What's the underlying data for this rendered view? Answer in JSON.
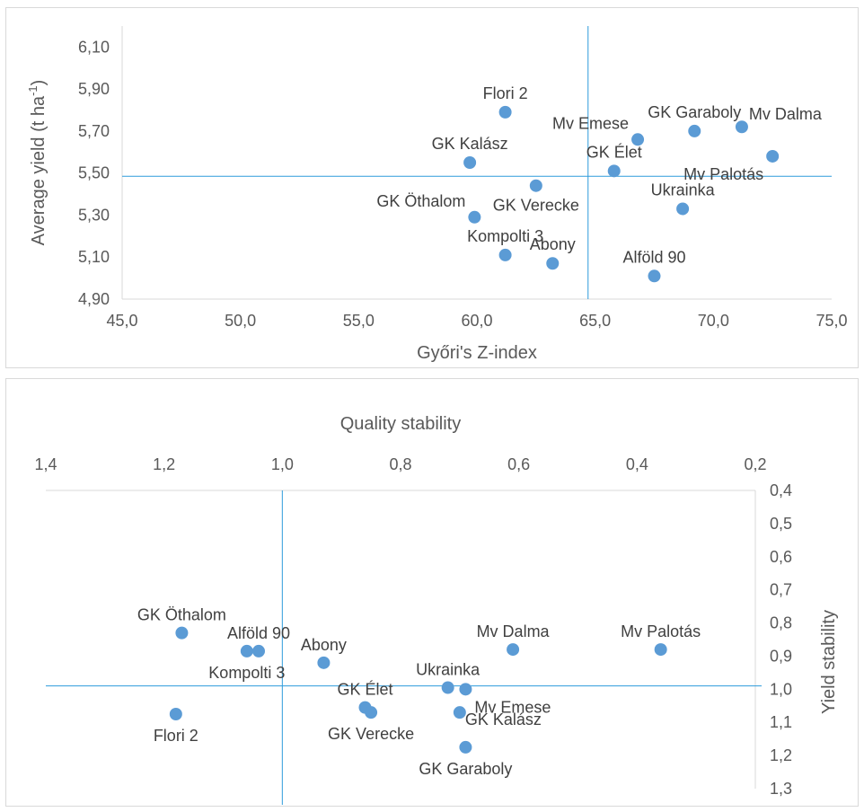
{
  "chart_data": [
    {
      "type": "scatter",
      "xlabel": "Győri's Z-index",
      "ylabel": "Average yield (t ha-1)",
      "ylabel_parts": [
        "Average yield (t ha",
        "-1",
        ")"
      ],
      "xlim": [
        45,
        75
      ],
      "ylim": [
        4.9,
        6.2
      ],
      "x_ticks": [
        "45,0",
        "50,0",
        "55,0",
        "60,0",
        "65,0",
        "70,0",
        "75,0"
      ],
      "x_tick_values": [
        45,
        50,
        55,
        60,
        65,
        70,
        75
      ],
      "y_ticks": [
        "4,90",
        "5,10",
        "5,30",
        "5,50",
        "5,70",
        "5,90",
        "6,10"
      ],
      "y_tick_values": [
        4.9,
        5.1,
        5.3,
        5.5,
        5.7,
        5.9,
        6.1
      ],
      "reference_lines": {
        "x": 64.7,
        "y": 5.485
      },
      "grid": false,
      "marker_color": "#5b9bd5",
      "line_color": "#2e9bdb",
      "points": [
        {
          "name": "Flori 2",
          "x": 61.2,
          "y": 5.79,
          "label_pos": "above"
        },
        {
          "name": "GK Garaboly",
          "x": 69.2,
          "y": 5.7,
          "label_pos": "above"
        },
        {
          "name": "Mv Dalma",
          "x": 71.2,
          "y": 5.72,
          "label_pos": "right"
        },
        {
          "name": "Mv Emese",
          "x": 66.8,
          "y": 5.66,
          "label_pos": "above-left"
        },
        {
          "name": "Mv Palotás",
          "x": 72.5,
          "y": 5.58,
          "label_pos": "below-left"
        },
        {
          "name": "GK Kalász",
          "x": 59.7,
          "y": 5.55,
          "label_pos": "above"
        },
        {
          "name": "GK Élet",
          "x": 65.8,
          "y": 5.51,
          "label_pos": "above"
        },
        {
          "name": "GK Verecke",
          "x": 62.5,
          "y": 5.44,
          "label_pos": "below"
        },
        {
          "name": "Ukrainka",
          "x": 68.7,
          "y": 5.33,
          "label_pos": "above"
        },
        {
          "name": "GK Öthalom",
          "x": 59.9,
          "y": 5.29,
          "label_pos": "above-left"
        },
        {
          "name": "Kompolti 3",
          "x": 61.2,
          "y": 5.11,
          "label_pos": "above"
        },
        {
          "name": "Abony",
          "x": 63.2,
          "y": 5.07,
          "label_pos": "above"
        },
        {
          "name": "Alföld 90",
          "x": 67.5,
          "y": 5.01,
          "label_pos": "above"
        }
      ]
    },
    {
      "type": "scatter",
      "xlabel": "Quality stability",
      "ylabel": "Yield stability",
      "xlim": [
        1.4,
        0.2
      ],
      "ylim": [
        0.4,
        1.3
      ],
      "x_reversed": true,
      "y_reversed": true,
      "x_ticks": [
        "1,4",
        "1,2",
        "1,0",
        "0,8",
        "0,6",
        "0,4",
        "0,2"
      ],
      "x_tick_values": [
        1.4,
        1.2,
        1.0,
        0.8,
        0.6,
        0.4,
        0.2
      ],
      "y_ticks": [
        "0,4",
        "0,5",
        "0,6",
        "0,7",
        "0,8",
        "0,9",
        "1,0",
        "1,1",
        "1,2",
        "1,3"
      ],
      "y_tick_values": [
        0.4,
        0.5,
        0.6,
        0.7,
        0.8,
        0.9,
        1.0,
        1.1,
        1.2,
        1.3
      ],
      "reference_lines": {
        "x": 1.0,
        "y": 0.99
      },
      "grid": false,
      "marker_color": "#5b9bd5",
      "line_color": "#2e9bdb",
      "points": [
        {
          "name": "GK Öthalom",
          "x": 1.17,
          "y": 0.83,
          "label_pos": "above"
        },
        {
          "name": "Alföld 90",
          "x": 1.04,
          "y": 0.885,
          "label_pos": "above"
        },
        {
          "name": "Kompolti 3",
          "x": 1.06,
          "y": 0.885,
          "label_pos": "below"
        },
        {
          "name": "Abony",
          "x": 0.93,
          "y": 0.92,
          "label_pos": "above"
        },
        {
          "name": "Mv Dalma",
          "x": 0.61,
          "y": 0.88,
          "label_pos": "above"
        },
        {
          "name": "Mv Palotás",
          "x": 0.36,
          "y": 0.88,
          "label_pos": "above"
        },
        {
          "name": "Ukrainka",
          "x": 0.72,
          "y": 0.995,
          "label_pos": "above"
        },
        {
          "name": "Mv Emese",
          "x": 0.69,
          "y": 1.0,
          "label_pos": "below-right"
        },
        {
          "name": "GK Élet",
          "x": 0.86,
          "y": 1.055,
          "label_pos": "above"
        },
        {
          "name": "GK Verecke",
          "x": 0.85,
          "y": 1.07,
          "label_pos": "below"
        },
        {
          "name": "GK Kalász",
          "x": 0.7,
          "y": 1.07,
          "label_pos": "right"
        },
        {
          "name": "Flori 2",
          "x": 1.18,
          "y": 1.075,
          "label_pos": "below"
        },
        {
          "name": "GK Garaboly",
          "x": 0.69,
          "y": 1.175,
          "label_pos": "below"
        }
      ]
    }
  ]
}
